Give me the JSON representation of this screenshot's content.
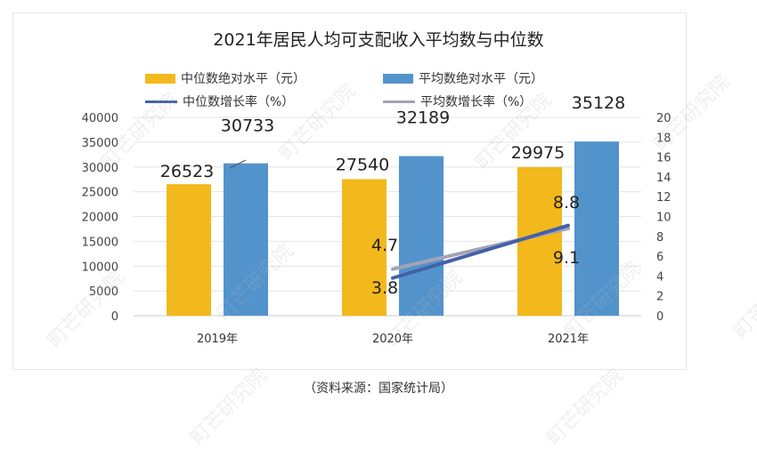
{
  "chart_data": {
    "type": "bar+line",
    "title": "2021年居民人均可支配收入平均数与中位数",
    "categories": [
      "2019年",
      "2020年",
      "2021年"
    ],
    "series": [
      {
        "name": "中位数绝对水平（元）",
        "type": "bar",
        "axis": "left",
        "color": "#F3B81C",
        "values": [
          26523,
          27540,
          29975
        ]
      },
      {
        "name": "平均数绝对水平（元）",
        "type": "bar",
        "axis": "left",
        "color": "#5393CC",
        "values": [
          30733,
          32189,
          35128
        ]
      },
      {
        "name": "中位数增长率（%）",
        "type": "line",
        "axis": "right",
        "color": "#4361A8",
        "values": [
          null,
          3.8,
          9.1
        ]
      },
      {
        "name": "平均数增长率（%）",
        "type": "line",
        "axis": "right",
        "color": "#A3A3B5",
        "values": [
          null,
          4.7,
          8.8
        ]
      }
    ],
    "y_left": {
      "min": 0,
      "max": 40000,
      "ticks": [
        "0",
        "5000",
        "10000",
        "15000",
        "20000",
        "25000",
        "30000",
        "35000",
        "40000"
      ]
    },
    "y_right": {
      "min": 0,
      "max": 20,
      "ticks": [
        "0",
        "2",
        "4",
        "6",
        "8",
        "10",
        "12",
        "14",
        "16",
        "18",
        "20"
      ]
    },
    "grid": true,
    "legend_position": "top"
  },
  "source": "（资料来源：国家统计局）",
  "watermark": "町芒研究院"
}
